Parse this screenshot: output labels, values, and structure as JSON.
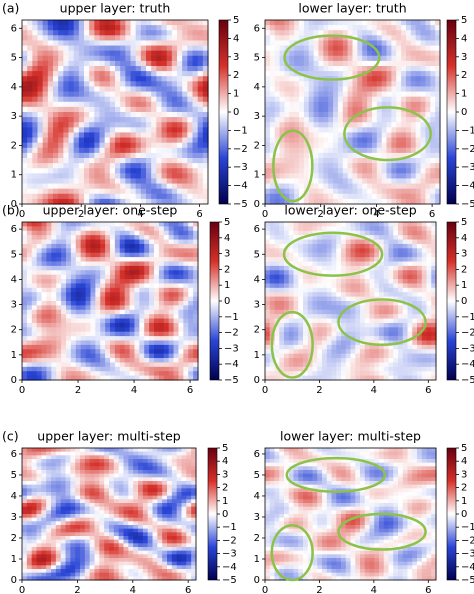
{
  "chart_data": [
    {
      "type": "heatmap",
      "label": "(a)",
      "title": "upper layer: truth",
      "xlim": [
        0,
        6.283
      ],
      "ylim": [
        0,
        6.283
      ],
      "xticks": [
        0,
        2,
        4,
        6
      ],
      "yticks": [
        0,
        1,
        2,
        3,
        4,
        5,
        6
      ],
      "clim": [
        -5,
        5
      ],
      "cticks": [
        5,
        4,
        3,
        2,
        1,
        0,
        {
          "value": -1,
          "label": "−1"
        },
        {
          "value": -2,
          "label": "−2"
        },
        {
          "value": -3,
          "label": "−3"
        },
        {
          "value": -4,
          "label": "−4"
        },
        {
          "value": -5,
          "label": "−5"
        }
      ]
    },
    {
      "type": "heatmap",
      "title": "lower layer: truth",
      "xlim": [
        0,
        6.283
      ],
      "ylim": [
        0,
        6.283
      ],
      "xticks": [
        0,
        2,
        4,
        6
      ],
      "yticks": [
        0,
        1,
        2,
        3,
        4,
        5,
        6
      ],
      "clim": [
        -5,
        5
      ],
      "cticks": [
        5,
        4,
        3,
        2,
        1,
        0,
        {
          "value": -1,
          "label": "−1"
        },
        {
          "value": -2,
          "label": "−2"
        },
        {
          "value": -3,
          "label": "−3"
        },
        {
          "value": -4,
          "label": "−4"
        },
        {
          "value": -5,
          "label": "−5"
        }
      ]
    },
    {
      "type": "heatmap",
      "label": "(b)",
      "title": "upper layer: one-step",
      "xlim": [
        0,
        6.283
      ],
      "ylim": [
        0,
        6.283
      ],
      "xticks": [
        0,
        2,
        4,
        6
      ],
      "yticks": [
        0,
        1,
        2,
        3,
        4,
        5,
        6
      ],
      "clim": [
        -5,
        5
      ],
      "cticks": [
        5,
        4,
        3,
        2,
        1,
        0,
        {
          "value": -1,
          "label": "−1"
        },
        {
          "value": -2,
          "label": "−2"
        },
        {
          "value": -3,
          "label": "−3"
        },
        {
          "value": -4,
          "label": "−4"
        },
        {
          "value": -5,
          "label": "−5"
        }
      ]
    },
    {
      "type": "heatmap",
      "title": "lower layer: one-step",
      "xlim": [
        0,
        6.283
      ],
      "ylim": [
        0,
        6.283
      ],
      "xticks": [
        0,
        2,
        4,
        6
      ],
      "yticks": [
        0,
        1,
        2,
        3,
        4,
        5,
        6
      ],
      "clim": [
        -5,
        5
      ],
      "cticks": [
        5,
        4,
        3,
        2,
        1,
        0,
        {
          "value": -1,
          "label": "−1"
        },
        {
          "value": -2,
          "label": "−2"
        },
        {
          "value": -3,
          "label": "−3"
        },
        {
          "value": -4,
          "label": "−4"
        },
        {
          "value": -5,
          "label": "−5"
        }
      ]
    },
    {
      "type": "heatmap",
      "label": "(c)",
      "title": "upper layer: multi-step",
      "xlim": [
        0,
        6.283
      ],
      "ylim": [
        0,
        6.283
      ],
      "xticks": [
        0,
        2,
        4,
        6
      ],
      "yticks": [
        0,
        1,
        2,
        3,
        4,
        5,
        6
      ],
      "clim": [
        -5,
        5
      ],
      "cticks": [
        5,
        4,
        3,
        2,
        1,
        0,
        {
          "value": -1,
          "label": "−1"
        },
        {
          "value": -2,
          "label": "−2"
        },
        {
          "value": -3,
          "label": "−3"
        },
        {
          "value": -4,
          "label": "−4"
        },
        {
          "value": -5,
          "label": "−5"
        }
      ]
    },
    {
      "type": "heatmap",
      "title": "lower layer: multi-step",
      "xlim": [
        0,
        6.283
      ],
      "ylim": [
        0,
        6.283
      ],
      "xticks": [
        0,
        2,
        4,
        6
      ],
      "yticks": [
        0,
        1,
        2,
        3,
        4,
        5,
        6
      ],
      "clim": [
        -5,
        5
      ],
      "cticks": [
        5,
        4,
        3,
        2,
        1,
        0,
        {
          "value": -1,
          "label": "−1"
        },
        {
          "value": -2,
          "label": "−2"
        },
        {
          "value": -3,
          "label": "−3"
        },
        {
          "value": -4,
          "label": "−4"
        },
        {
          "value": -5,
          "label": "−5"
        }
      ]
    }
  ]
}
